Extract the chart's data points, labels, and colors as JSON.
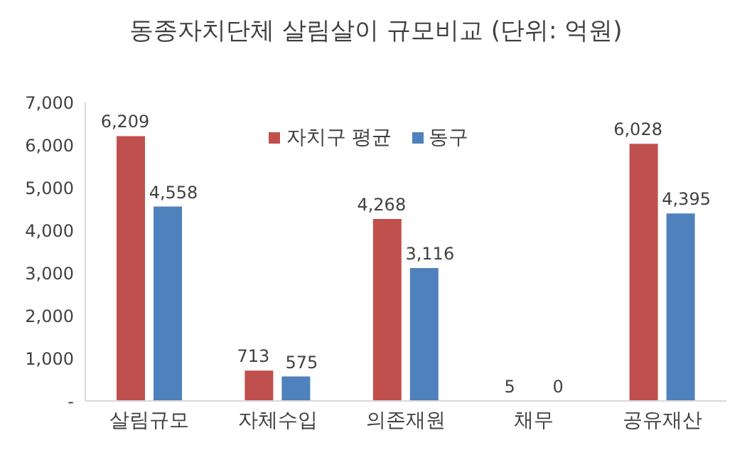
{
  "chart_data": {
    "type": "bar",
    "title": "동종자치단체 살림살이 규모비교 (단위: 억원)",
    "categories": [
      "살림규모",
      "자체수입",
      "의존재원",
      "채무",
      "공유재산"
    ],
    "series": [
      {
        "name": "자치구 평균",
        "color": "#c0504d",
        "values": [
          6209,
          713,
          4268,
          5,
          6028
        ],
        "value_labels": [
          "6,209",
          "713",
          "4,268",
          "5",
          "6,028"
        ]
      },
      {
        "name": "동구",
        "color": "#4f81bd",
        "values": [
          4558,
          575,
          3116,
          0,
          4395
        ],
        "value_labels": [
          "4,558",
          "575",
          "3,116",
          "0",
          "4,395"
        ]
      }
    ],
    "ylim": [
      0,
      7000
    ],
    "yticks": [
      {
        "value": 0,
        "label": "-"
      },
      {
        "value": 1000,
        "label": "1,000"
      },
      {
        "value": 2000,
        "label": "2,000"
      },
      {
        "value": 3000,
        "label": "3,000"
      },
      {
        "value": 4000,
        "label": "4,000"
      },
      {
        "value": 5000,
        "label": "5,000"
      },
      {
        "value": 6000,
        "label": "6,000"
      },
      {
        "value": 7000,
        "label": "7,000"
      }
    ],
    "legend": "top",
    "grid": false
  }
}
